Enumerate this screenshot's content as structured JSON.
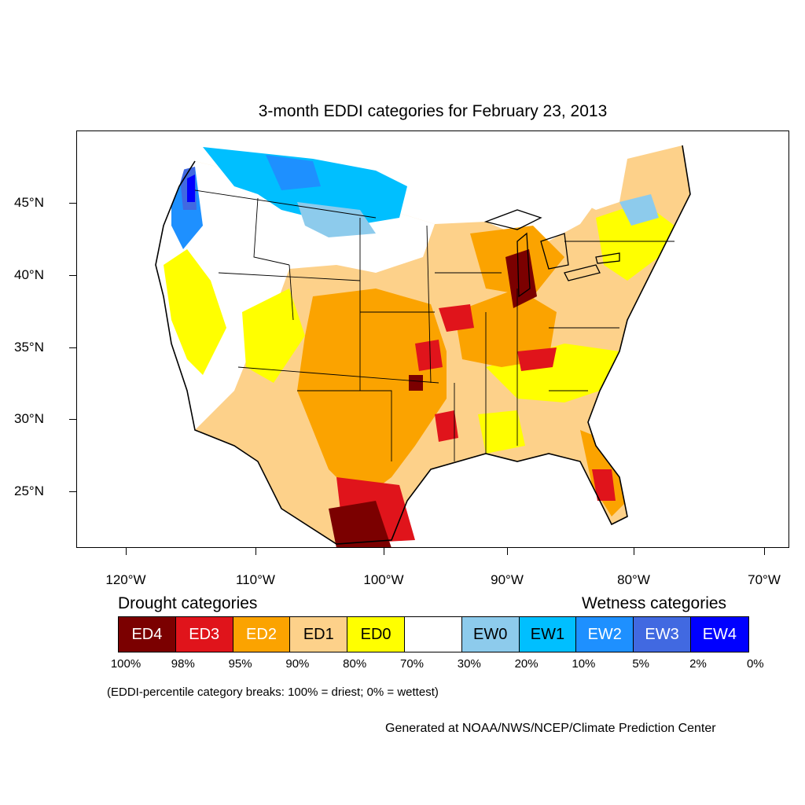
{
  "title": "3-month EDDI categories for February 23, 2013",
  "lat_labels": [
    "45°N",
    "40°N",
    "35°N",
    "30°N",
    "25°N"
  ],
  "lon_labels": [
    "120°W",
    "110°W",
    "100°W",
    "90°W",
    "80°W",
    "70°W"
  ],
  "legend": {
    "drought_heading": "Drought categories",
    "wetness_heading": "Wetness categories",
    "categories": [
      {
        "label": "ED4",
        "color": "#7b0000",
        "text_color": "#ffffff"
      },
      {
        "label": "ED3",
        "color": "#e0141b",
        "text_color": "#ffffff"
      },
      {
        "label": "ED2",
        "color": "#fba300",
        "text_color": "#ffffff"
      },
      {
        "label": "ED1",
        "color": "#fdd18a",
        "text_color": "#000000"
      },
      {
        "label": "ED0",
        "color": "#ffff00",
        "text_color": "#000000"
      },
      {
        "label": "",
        "color": "#ffffff",
        "text_color": "#000000"
      },
      {
        "label": "EW0",
        "color": "#8dcbec",
        "text_color": "#000000"
      },
      {
        "label": "EW1",
        "color": "#00bfff",
        "text_color": "#000000"
      },
      {
        "label": "EW2",
        "color": "#1e90ff",
        "text_color": "#ffffff"
      },
      {
        "label": "EW3",
        "color": "#4169e1",
        "text_color": "#ffffff"
      },
      {
        "label": "EW4",
        "color": "#0000ff",
        "text_color": "#ffffff"
      }
    ],
    "breaks": [
      "100%",
      "98%",
      "95%",
      "90%",
      "80%",
      "70%",
      "30%",
      "20%",
      "10%",
      "5%",
      "2%",
      "0%"
    ]
  },
  "note": "(EDDI-percentile category breaks: 100% = driest; 0% = wettest)",
  "credit": "Generated at NOAA/NWS/NCEP/Climate Prediction Center"
}
